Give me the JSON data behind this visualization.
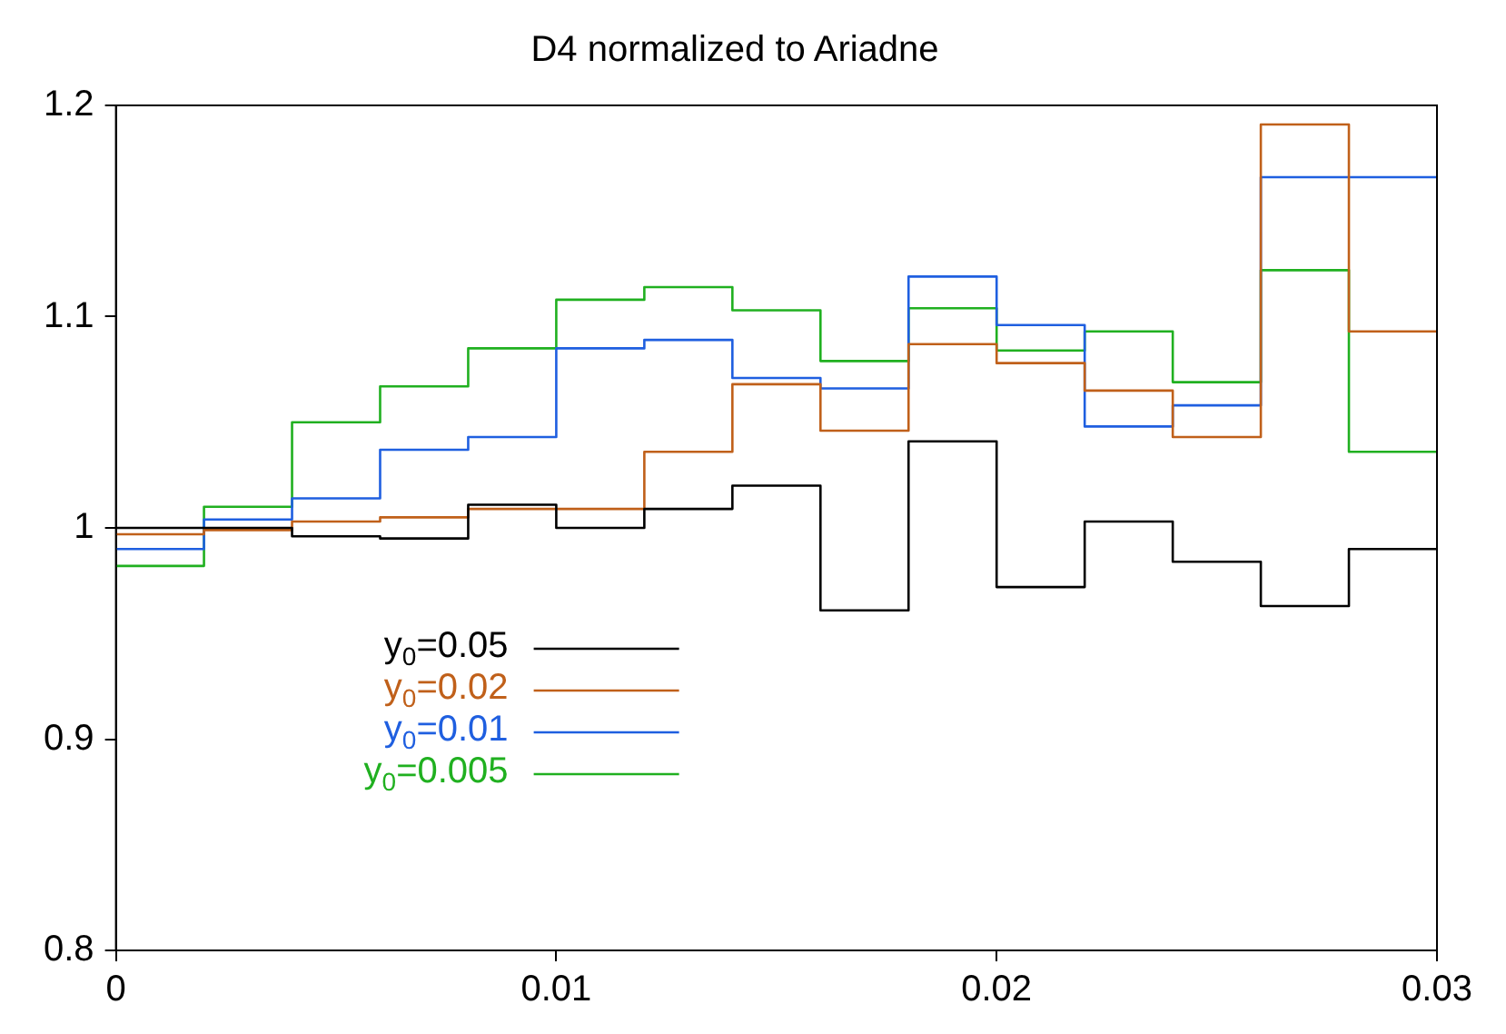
{
  "chart_data": {
    "type": "histogram",
    "title": "D4 normalized to Ariadne",
    "bins": [
      0,
      0.002,
      0.004,
      0.006,
      0.008,
      0.01,
      0.012,
      0.014,
      0.016,
      0.018,
      0.02,
      0.022,
      0.024,
      0.026,
      0.028,
      0.03
    ],
    "series": [
      {
        "name": "y$_{0}$=0.05",
        "color": "#000000",
        "values": [
          1.0,
          1.0,
          0.996,
          0.995,
          1.011,
          1.0,
          1.009,
          1.02,
          0.961,
          1.041,
          0.972,
          1.003,
          0.984,
          0.963,
          0.99
        ]
      },
      {
        "name": "y$_{0}$=0.02",
        "color": "#c0601a",
        "values": [
          0.997,
          0.999,
          1.003,
          1.005,
          1.009,
          1.009,
          1.036,
          1.068,
          1.046,
          1.087,
          1.078,
          1.065,
          1.043,
          1.191,
          1.093
        ]
      },
      {
        "name": "y$_{0}$=0.01",
        "color": "#1f5fe0",
        "values": [
          0.99,
          1.004,
          1.014,
          1.037,
          1.043,
          1.085,
          1.089,
          1.071,
          1.066,
          1.119,
          1.096,
          1.048,
          1.058,
          1.166,
          1.166
        ]
      },
      {
        "name": "y$_{0}$=0.005",
        "color": "#20b020",
        "values": [
          0.982,
          1.01,
          1.05,
          1.067,
          1.085,
          1.108,
          1.114,
          1.103,
          1.079,
          1.104,
          1.084,
          1.093,
          1.069,
          1.122,
          1.036
        ]
      }
    ],
    "xlim": [
      0,
      0.03
    ],
    "xticks": [
      0,
      0.01,
      0.02,
      0.03
    ],
    "ylim": [
      0.8,
      1.2
    ],
    "yticks": [
      0.8,
      0.9,
      1,
      1.1,
      1.2
    ],
    "grid": false,
    "legend": "bottom left"
  }
}
